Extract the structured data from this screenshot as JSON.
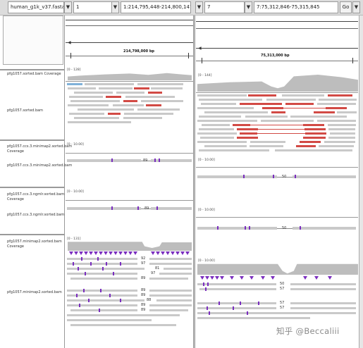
{
  "toolbar": {
    "genome": "human_g1k_v37.fasta",
    "left_chrom": "1",
    "left_locus": "1:214,795,448-214,800,147",
    "right_chrom": "7",
    "right_locus": "7:75,312,846-75,315,845",
    "go_label": "Go"
  },
  "left_panel": {
    "ruler_label": "214,798,000 bp",
    "ranges": [
      "[0 - 128]",
      "[0 - 10.00]",
      "[0 - 10.00]",
      "[0 - 131]"
    ],
    "marks": [
      "89",
      "89",
      "92",
      "97",
      "81",
      "97",
      "89",
      "89",
      "89",
      "88",
      "89",
      "89"
    ]
  },
  "right_panel": {
    "ruler_label": "75,313,000 bp",
    "ranges": [
      "[0 - 144]",
      "[0 - 10.00]",
      "[0 - 10.00]",
      "[0 - 10.00]"
    ],
    "marks": [
      "50",
      "50",
      "50",
      "57",
      "57",
      "57"
    ]
  },
  "tracks": {
    "t1": "pfg1057.sorted.bam Coverage",
    "t2": "pfg1057.sorted.bam",
    "t3": "pfg1057.ccs.3.minimap2.sorted.bam Coverage",
    "t4": "pfg1057.ccs.3.minimap2.sorted.bam",
    "t5": "pfg1057.ccs.3.ngmlr.sorted.bam Coverage",
    "t6": "pfg1057.ccs.3.ngmlr.sorted.bam",
    "t7": "pfg1057.minimap2.sorted.bam Coverage",
    "t8": "pfg1057.minimap2.sorted.bam"
  },
  "watermark": "知乎 @Beccaliii",
  "colors": {
    "deletion": "#d24a45",
    "insertion": "#7a2dbf",
    "coverage": "#bdbdbd",
    "read": "#c9c9c9"
  }
}
